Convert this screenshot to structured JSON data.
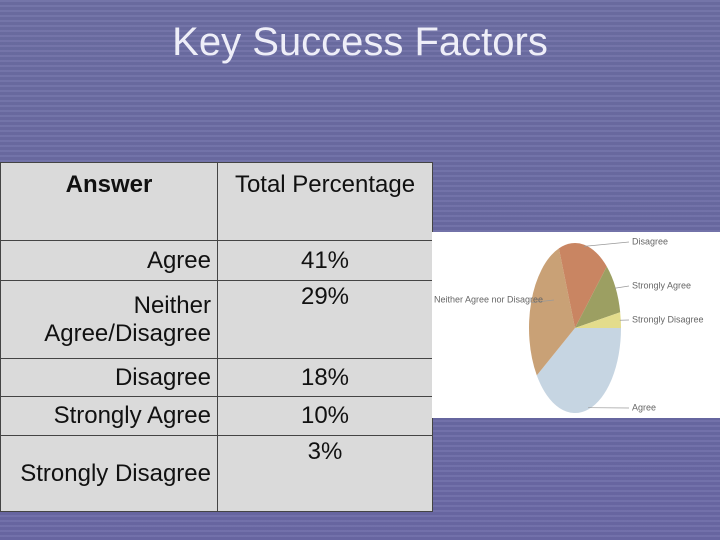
{
  "title": "Key Success Factors",
  "table": {
    "header": [
      "Answer",
      "Total Percentage"
    ],
    "rows": [
      [
        "Agree",
        "41%"
      ],
      [
        "Neither Agree/Disagree",
        "29%"
      ],
      [
        "Disagree",
        "18%"
      ],
      [
        "Strongly Agree",
        "10%"
      ],
      [
        "Strongly Disagree",
        "3%"
      ]
    ]
  },
  "chart_data": {
    "type": "pie",
    "categories": [
      "Agree",
      "Neither Agree nor Disagree",
      "Disagree",
      "Strongly Agree",
      "Strongly Disagree"
    ],
    "values": [
      41,
      29,
      18,
      10,
      3
    ],
    "colors": [
      "#c6d5e2",
      "#c9a176",
      "#c98562",
      "#9c9f62",
      "#e3dc8c"
    ]
  }
}
